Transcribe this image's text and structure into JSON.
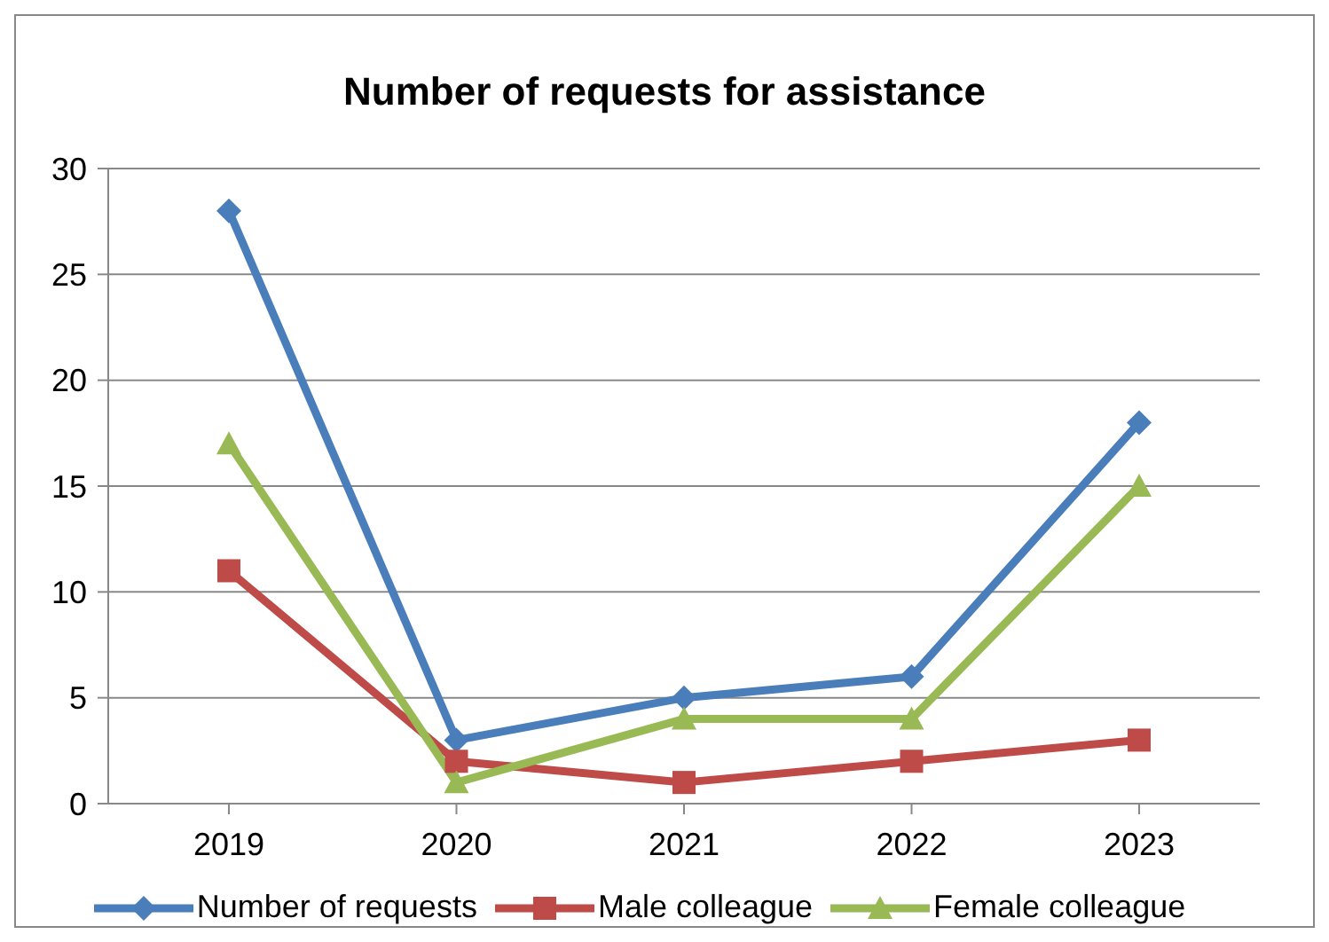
{
  "chart_data": {
    "type": "line",
    "title": "Number of requests for assistance",
    "categories": [
      "2019",
      "2020",
      "2021",
      "2022",
      "2023"
    ],
    "series": [
      {
        "name": "Number of requests",
        "color": "#4a7ebb",
        "values": [
          28,
          3,
          5,
          6,
          18
        ],
        "marker": "diamond"
      },
      {
        "name": "Male colleague",
        "color": "#be4b48",
        "values": [
          11,
          2,
          1,
          2,
          3
        ],
        "marker": "square"
      },
      {
        "name": "Female colleague",
        "color": "#98b954",
        "values": [
          17,
          1,
          4,
          4,
          15
        ],
        "marker": "triangle"
      }
    ],
    "ylim": [
      0,
      30
    ],
    "yticks": [
      0,
      5,
      10,
      15,
      20,
      25,
      30
    ],
    "grid": "y",
    "legend": "bottom",
    "line_style": "solid"
  }
}
